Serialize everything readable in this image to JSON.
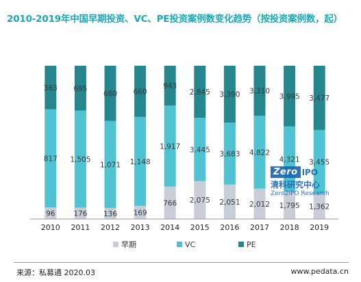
{
  "title": "2010-2019年中国早期投资、VC、PE投资案例数变化趋势（按投资案例数，起）",
  "source": "来源：私募通 2020.03",
  "website": "www.pedata.cn",
  "watermark": {
    "logo_box": "Zero",
    "logo_ipo": "IPO",
    "cn": "清科研究中心",
    "en": "Zero2IPO Research"
  },
  "colors": {
    "early": "#c8cdd8",
    "vc": "#4fc3d2",
    "pe": "#25868d"
  },
  "chart_data": {
    "type": "bar",
    "stacked": "percent",
    "categories": [
      "2010",
      "2011",
      "2012",
      "2013",
      "2014",
      "2015",
      "2016",
      "2017",
      "2018",
      "2019"
    ],
    "series": [
      {
        "name": "早期",
        "values": [
          96,
          176,
          136,
          169,
          766,
          2075,
          2051,
          2012,
          1795,
          1362
        ],
        "labels": [
          "96",
          "176",
          "136",
          "169",
          "766",
          "2,075",
          "2,051",
          "2,012",
          "1,795",
          "1,362"
        ]
      },
      {
        "name": "VC",
        "values": [
          817,
          1505,
          1071,
          1148,
          1917,
          3445,
          3683,
          4822,
          4321,
          3455
        ],
        "labels": [
          "817",
          "1,505",
          "1,071",
          "1,148",
          "1,917",
          "3,445",
          "3,683",
          "4,822",
          "4,321",
          "3,455"
        ]
      },
      {
        "name": "PE",
        "values": [
          363,
          695,
          680,
          660,
          943,
          2845,
          3390,
          3310,
          3995,
          3477
        ],
        "labels": [
          "363",
          "695",
          "680",
          "660",
          "943",
          "2,845",
          "3,390",
          "3,310",
          "3,995",
          "3,477"
        ]
      }
    ],
    "legend_position": "bottom",
    "grid": false
  }
}
